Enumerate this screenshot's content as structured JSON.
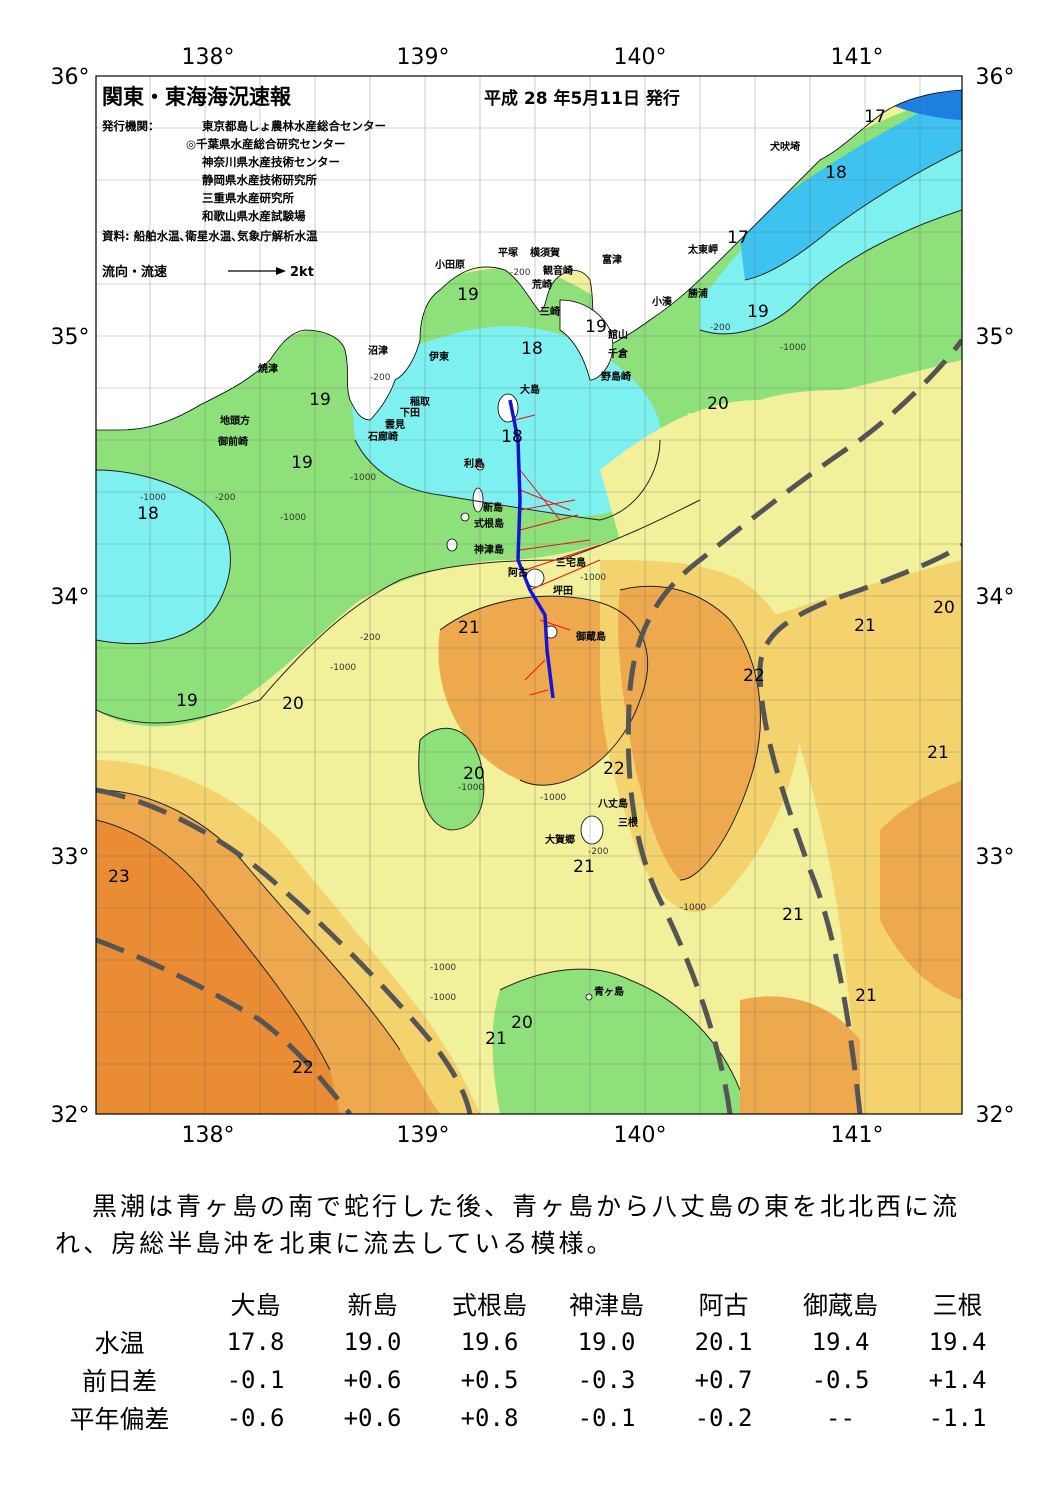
{
  "title": "関東・東海海況速報",
  "issue_date": "平成 28 年5月11日 発行",
  "issuers_label": "発行機関：",
  "issuers": [
    "東京都島しょ農林水産総合センター",
    "◎千葉県水産総合研究センター",
    "神奈川県水産技術センター",
    "静岡県水産技術研究所",
    "三重県水産研究所",
    "和歌山県水産試験場"
  ],
  "sources": "資料: 船舶水温､衛星水温､気象庁解析水温",
  "legend": {
    "label": "流向・流速",
    "scale": "2kt"
  },
  "axes": {
    "lon_ticks": [
      "138°",
      "139°",
      "140°",
      "141°"
    ],
    "lat_ticks": [
      "36°",
      "35°",
      "34°",
      "33°",
      "32°"
    ],
    "lon_range": [
      137.5,
      141.5
    ],
    "lat_range": [
      32,
      36
    ]
  },
  "isotherm_labels": [
    "17",
    "18",
    "17",
    "19",
    "19",
    "18",
    "19",
    "20",
    "19",
    "19",
    "18",
    "18",
    "21",
    "19",
    "20",
    "22",
    "21",
    "20",
    "20",
    "22",
    "21",
    "21",
    "23",
    "21",
    "22",
    "21",
    "20",
    "21"
  ],
  "place_names": [
    "犬吠埼",
    "太東岬",
    "勝浦",
    "小湊",
    "富津",
    "横須賀",
    "観音崎",
    "平塚",
    "小田原",
    "荒崎",
    "三崎",
    "館山",
    "千倉",
    "野島崎",
    "大島",
    "沼津",
    "伊東",
    "焼津",
    "稲取",
    "下田",
    "雲見",
    "石廊崎",
    "地頭方",
    "御前崎",
    "利島",
    "新島",
    "式根島",
    "神津島",
    "三宅島",
    "阿古",
    "坪田",
    "御蔵島",
    "八丈島",
    "三根",
    "大賀郷",
    "青ヶ島"
  ],
  "depth_labels": [
    "-200",
    "-200",
    "-1000",
    "-200",
    "-1000",
    "-1000",
    "-200",
    "-1000",
    "-1000",
    "-200",
    "-1000",
    "-1000",
    "-200",
    "-1000",
    "-1000",
    "-1000",
    "-1000"
  ],
  "colors": {
    "cold_17": "#1e7fe0",
    "c17_18": "#3ec3f0",
    "c18_19": "#7ef0f0",
    "c19_20": "#8ee07a",
    "c20_21": "#f2f09a",
    "c21_22": "#f4d36e",
    "c22_23": "#eea84e",
    "c23": "#e98c33",
    "land": "#ffffff",
    "kuroshio_axis": "#555555",
    "ship_track": "#1414d8",
    "current_vectors": "#ee1111"
  },
  "summary": "黒潮は青ヶ島の南で蛇行した後、青ヶ島から八丈島の東を北北西に流れ、房総半島沖を北東に流去している模様。",
  "table": {
    "columns": [
      "大島",
      "新島",
      "式根島",
      "神津島",
      "阿古",
      "御蔵島",
      "三根"
    ],
    "rows": [
      {
        "label": "水温",
        "values": [
          "17.8",
          "19.0",
          "19.6",
          "19.0",
          "20.1",
          "19.4",
          "19.4"
        ]
      },
      {
        "label": "前日差",
        "values": [
          "-0.1",
          "+0.6",
          "+0.5",
          "-0.3",
          "+0.7",
          "-0.5",
          "+1.4"
        ]
      },
      {
        "label": "平年偏差",
        "values": [
          "-0.6",
          "+0.6",
          "+0.8",
          "-0.1",
          "-0.2",
          "--",
          "-1.1"
        ]
      }
    ]
  }
}
